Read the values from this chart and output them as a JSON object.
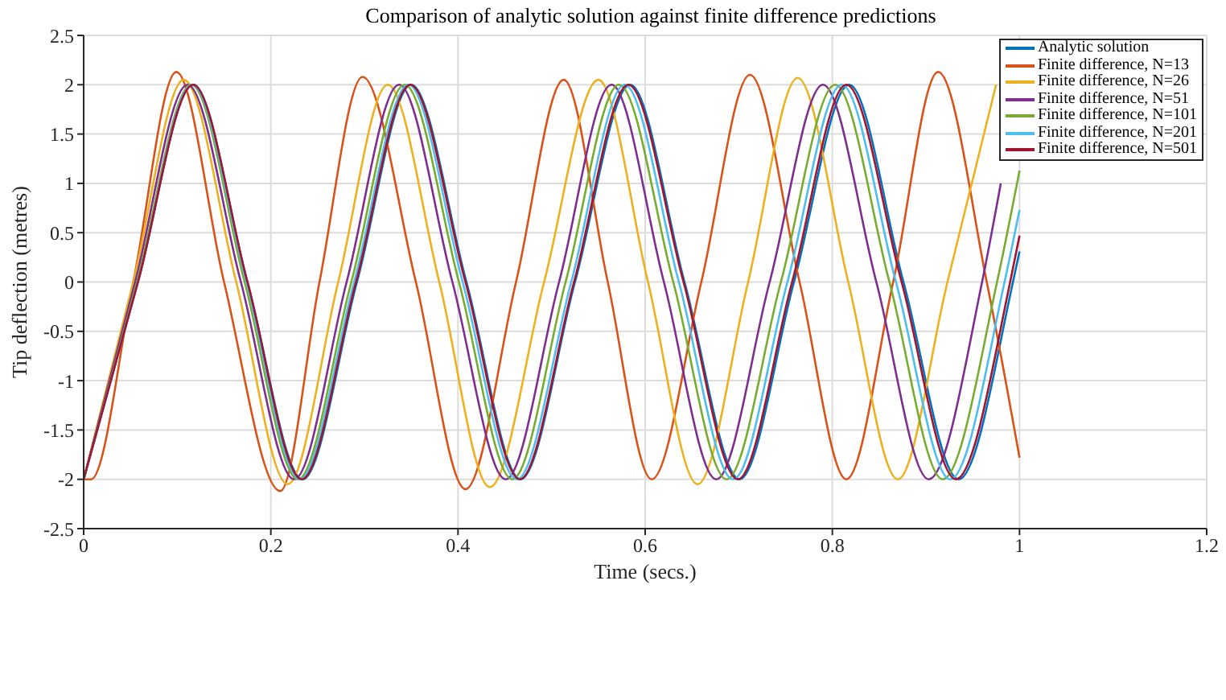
{
  "chart_data": {
    "type": "line",
    "title": "Comparison of analytic solution against finite difference predictions",
    "xlabel": "Time (secs.)",
    "ylabel": "Tip deflection (metres)",
    "xlim": [
      0,
      1.2
    ],
    "xticks": [
      0,
      0.2,
      0.4,
      0.6,
      0.8,
      1,
      1.2
    ],
    "ylim": [
      -2.5,
      2.5
    ],
    "yticks": [
      -2.5,
      -2,
      -1.5,
      -1,
      -0.5,
      0,
      0.5,
      1,
      1.5,
      2,
      2.5
    ],
    "grid": true,
    "legend": "top right",
    "marker": "none",
    "line_style": "solid",
    "series": [
      {
        "name": "Analytic solution",
        "color": "#0072bd",
        "x": [
          0,
          0.058,
          0.117,
          0.175,
          0.234,
          0.292,
          0.35,
          0.409,
          0.467,
          0.525,
          0.584,
          0.642,
          0.701,
          0.759,
          0.818,
          0.876,
          0.935,
          0.993,
          1
        ],
        "values": [
          -2,
          0,
          2,
          0,
          -2,
          0,
          2,
          0,
          -2,
          0,
          2,
          0,
          -2,
          0,
          2,
          0,
          -2,
          0,
          0.31
        ]
      },
      {
        "name": "Finite difference, N=13",
        "color": "#d95319",
        "x": [
          0,
          0.008,
          0.053,
          0.099,
          0.15,
          0.21,
          0.252,
          0.298,
          0.355,
          0.408,
          0.462,
          0.513,
          0.56,
          0.607,
          0.66,
          0.712,
          0.765,
          0.815,
          0.865,
          0.913,
          0.965,
          1
        ],
        "values": [
          -2,
          -2,
          0,
          2.13,
          0,
          -2.12,
          0,
          2.08,
          0,
          -2.1,
          0,
          2.05,
          0,
          -2,
          0,
          2.1,
          0,
          -2,
          0,
          2.13,
          0,
          -1.78
        ]
      },
      {
        "name": "Finite difference, N=26",
        "color": "#edb120",
        "x": [
          0,
          0.053,
          0.107,
          0.163,
          0.218,
          0.272,
          0.325,
          0.38,
          0.434,
          0.492,
          0.55,
          0.603,
          0.656,
          0.71,
          0.763,
          0.817,
          0.87,
          0.923,
          0.975
        ],
        "values": [
          -2,
          0,
          2.05,
          0,
          -2.05,
          0,
          2,
          0,
          -2.08,
          0,
          2.05,
          0,
          -2.05,
          0,
          2.07,
          0,
          -2,
          0,
          2
        ]
      },
      {
        "name": "Finite difference, N=51",
        "color": "#7e2f8e",
        "x": [
          0,
          0.055,
          0.111,
          0.168,
          0.225,
          0.281,
          0.337,
          0.394,
          0.451,
          0.508,
          0.564,
          0.62,
          0.676,
          0.733,
          0.79,
          0.847,
          0.903,
          0.96,
          0.98
        ],
        "values": [
          -2,
          0,
          2,
          0,
          -2,
          0,
          2,
          0,
          -2,
          0,
          2,
          0,
          -2,
          0,
          2,
          0,
          -2,
          0,
          1.0
        ]
      },
      {
        "name": "Finite difference, N=101",
        "color": "#77ac30",
        "x": [
          0,
          0.057,
          0.115,
          0.172,
          0.229,
          0.286,
          0.343,
          0.401,
          0.458,
          0.515,
          0.572,
          0.63,
          0.687,
          0.745,
          0.803,
          0.861,
          0.918,
          0.976,
          1
        ],
        "values": [
          -2,
          0,
          2,
          0,
          -2,
          0,
          2,
          0,
          -2,
          0,
          2,
          0,
          -2,
          0,
          2,
          0,
          -2,
          0,
          1.13
        ]
      },
      {
        "name": "Finite difference, N=201",
        "color": "#4dbeee",
        "x": [
          0,
          0.058,
          0.116,
          0.174,
          0.231,
          0.289,
          0.347,
          0.405,
          0.463,
          0.521,
          0.578,
          0.636,
          0.694,
          0.752,
          0.81,
          0.868,
          0.926,
          0.984,
          1
        ],
        "values": [
          -2,
          0,
          2,
          0,
          -2,
          0,
          2,
          0,
          -2,
          0,
          2,
          0,
          -2,
          0,
          2,
          0,
          -2,
          0,
          0.73
        ]
      },
      {
        "name": "Finite difference, N=501",
        "color": "#a2142f",
        "x": [
          0,
          0.058,
          0.117,
          0.175,
          0.233,
          0.291,
          0.349,
          0.408,
          0.466,
          0.524,
          0.582,
          0.641,
          0.699,
          0.757,
          0.815,
          0.874,
          0.932,
          0.99,
          1
        ],
        "values": [
          -2,
          0,
          2,
          0,
          -2,
          0,
          2,
          0,
          -2,
          0,
          2,
          0,
          -2,
          0,
          2,
          0,
          -2,
          0,
          0.47
        ]
      }
    ]
  }
}
